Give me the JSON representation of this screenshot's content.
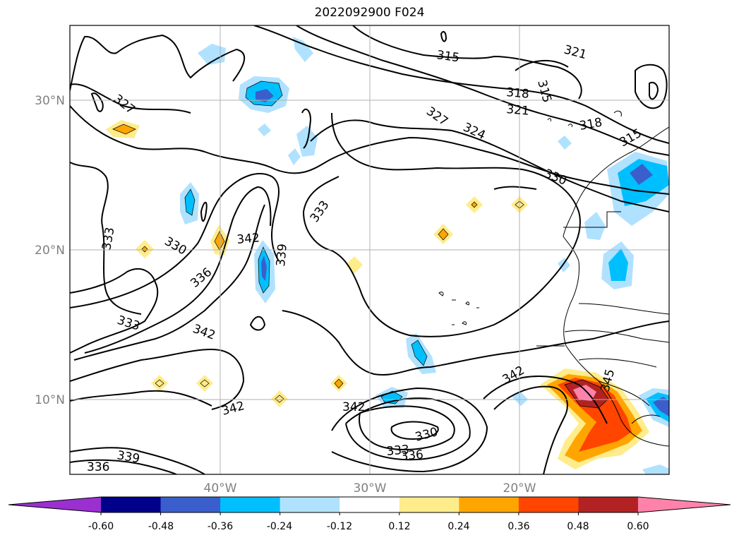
{
  "title": "2022092900 F024",
  "map": {
    "lat_ticks": [
      "30°N",
      "20°N",
      "10°N"
    ],
    "lon_ticks": [
      "40°W",
      "30°W",
      "20°W"
    ],
    "contour_labels": [
      "315",
      "321",
      "315",
      "318",
      "321",
      "327",
      "327",
      "324",
      "318",
      "315",
      "330",
      "333",
      "333",
      "342",
      "339",
      "330",
      "336",
      "333",
      "342",
      "342",
      "342",
      "330",
      "333",
      "336",
      "339",
      "336",
      "342",
      "345"
    ]
  },
  "colorbar": {
    "tick_labels": [
      "-0.60",
      "-0.48",
      "-0.36",
      "-0.24",
      "-0.12",
      "0.12",
      "0.24",
      "0.36",
      "0.48",
      "0.60"
    ],
    "colors": [
      "#9b30d0",
      "#00008b",
      "#3a5fcd",
      "#00bfff",
      "#b0e2ff",
      "#ffffff",
      "#ffec8b",
      "#ffa500",
      "#ff4500",
      "#b22222",
      "#ff82ab"
    ]
  }
}
